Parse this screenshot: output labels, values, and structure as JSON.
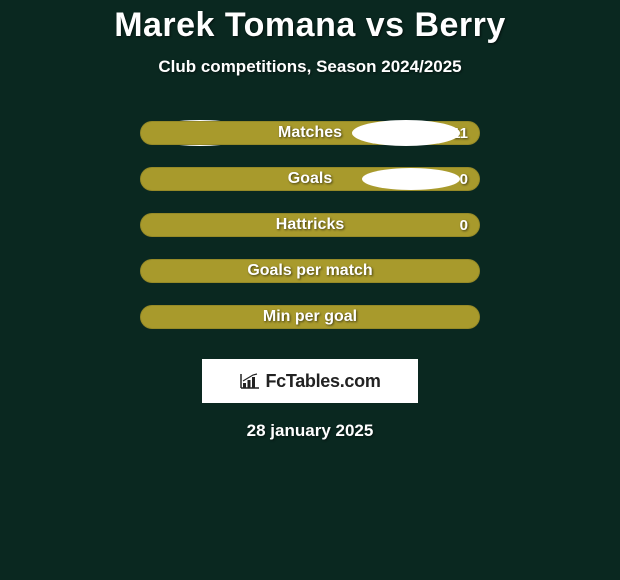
{
  "title": "Marek Tomana vs Berry",
  "subtitle": "Club competitions, Season 2024/2025",
  "date": "28 january 2025",
  "brand": "FcTables.com",
  "colors": {
    "background": "#0a2820",
    "bar_fill": "#a89a2c",
    "ellipse": "#ffffff",
    "text": "#ffffff",
    "brand_bg": "#ffffff",
    "brand_text": "#222222"
  },
  "stats": [
    {
      "label": "Matches",
      "value": "11",
      "left_ellipse": true,
      "right_ellipse": true,
      "ellipse_class": ""
    },
    {
      "label": "Goals",
      "value": "0",
      "left_ellipse": true,
      "right_ellipse": true,
      "ellipse_class": "row2"
    },
    {
      "label": "Hattricks",
      "value": "0",
      "left_ellipse": false,
      "right_ellipse": false,
      "ellipse_class": ""
    },
    {
      "label": "Goals per match",
      "value": "",
      "left_ellipse": false,
      "right_ellipse": false,
      "ellipse_class": ""
    },
    {
      "label": "Min per goal",
      "value": "",
      "left_ellipse": false,
      "right_ellipse": false,
      "ellipse_class": ""
    }
  ]
}
